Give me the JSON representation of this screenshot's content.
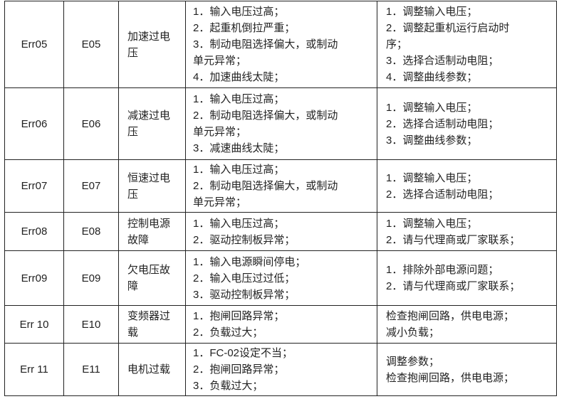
{
  "rows": [
    {
      "code": "Err05",
      "short": "E05",
      "name": [
        "加速过电",
        "压"
      ],
      "cause": [
        "1．输入电压过高；",
        "2．起重机倒拉严重；",
        "3．制动电阻选择偏大，或制动",
        "单元异常；",
        "4．加速曲线太陡；"
      ],
      "fix": [
        "1．调整输入电压；",
        "2．调整起重机运行启动时",
        "序；",
        "3．选择合适制动电阻；",
        "4．调整曲线参数；"
      ]
    },
    {
      "code": "Err06",
      "short": "E06",
      "name": [
        "减速过电",
        "压"
      ],
      "cause": [
        "1．输入电压过高；",
        "2．制动电阻选择偏大，或制动",
        "单元异常；",
        "3．减速曲线太陡；"
      ],
      "fix": [
        "1．调整输入电压；",
        "2．选择合适制动电阻；",
        "3．调整曲线参数；"
      ]
    },
    {
      "code": "Err07",
      "short": "E07",
      "name": [
        "恒速过电",
        "压"
      ],
      "cause": [
        "1．输入电压过高；",
        "2．制动电阻选择偏大，或制动",
        "单元异常；"
      ],
      "fix": [
        "1．调整输入电压；",
        "2．选择合适制动电阻；"
      ]
    },
    {
      "code": "Err08",
      "short": "E08",
      "name": [
        "控制电源",
        "故障"
      ],
      "cause": [
        "1．输入电压过高；",
        "2．驱动控制板异常；"
      ],
      "fix": [
        "1．调整输入电压；",
        "2．请与代理商或厂家联系；"
      ]
    },
    {
      "code": "Err09",
      "short": "E09",
      "name": [
        "欠电压故",
        "障"
      ],
      "cause": [
        "1．输入电源瞬间停电；",
        "2．输入电压过过低；",
        "3．驱动控制板异常；"
      ],
      "fix": [
        "1．排除外部电源问题；",
        "2．请与代理商或厂家联系；"
      ]
    },
    {
      "code": "Err 10",
      "short": "E10",
      "name": [
        "变频器过",
        "载"
      ],
      "cause": [
        "1．抱闸回路异常；",
        "2．负载过大；"
      ],
      "fix": [
        "检查抱闸回路，供电电源；",
        "减小负载；"
      ]
    },
    {
      "code": "Err 11",
      "short": "E11",
      "name": [
        "电机过载"
      ],
      "cause": [
        "1．FC-02设定不当；",
        "2．抱闸回路异常；",
        "3．负载过大；"
      ],
      "fix": [
        "调整参数；",
        "检查抱闸回路，供电电源；"
      ]
    }
  ]
}
